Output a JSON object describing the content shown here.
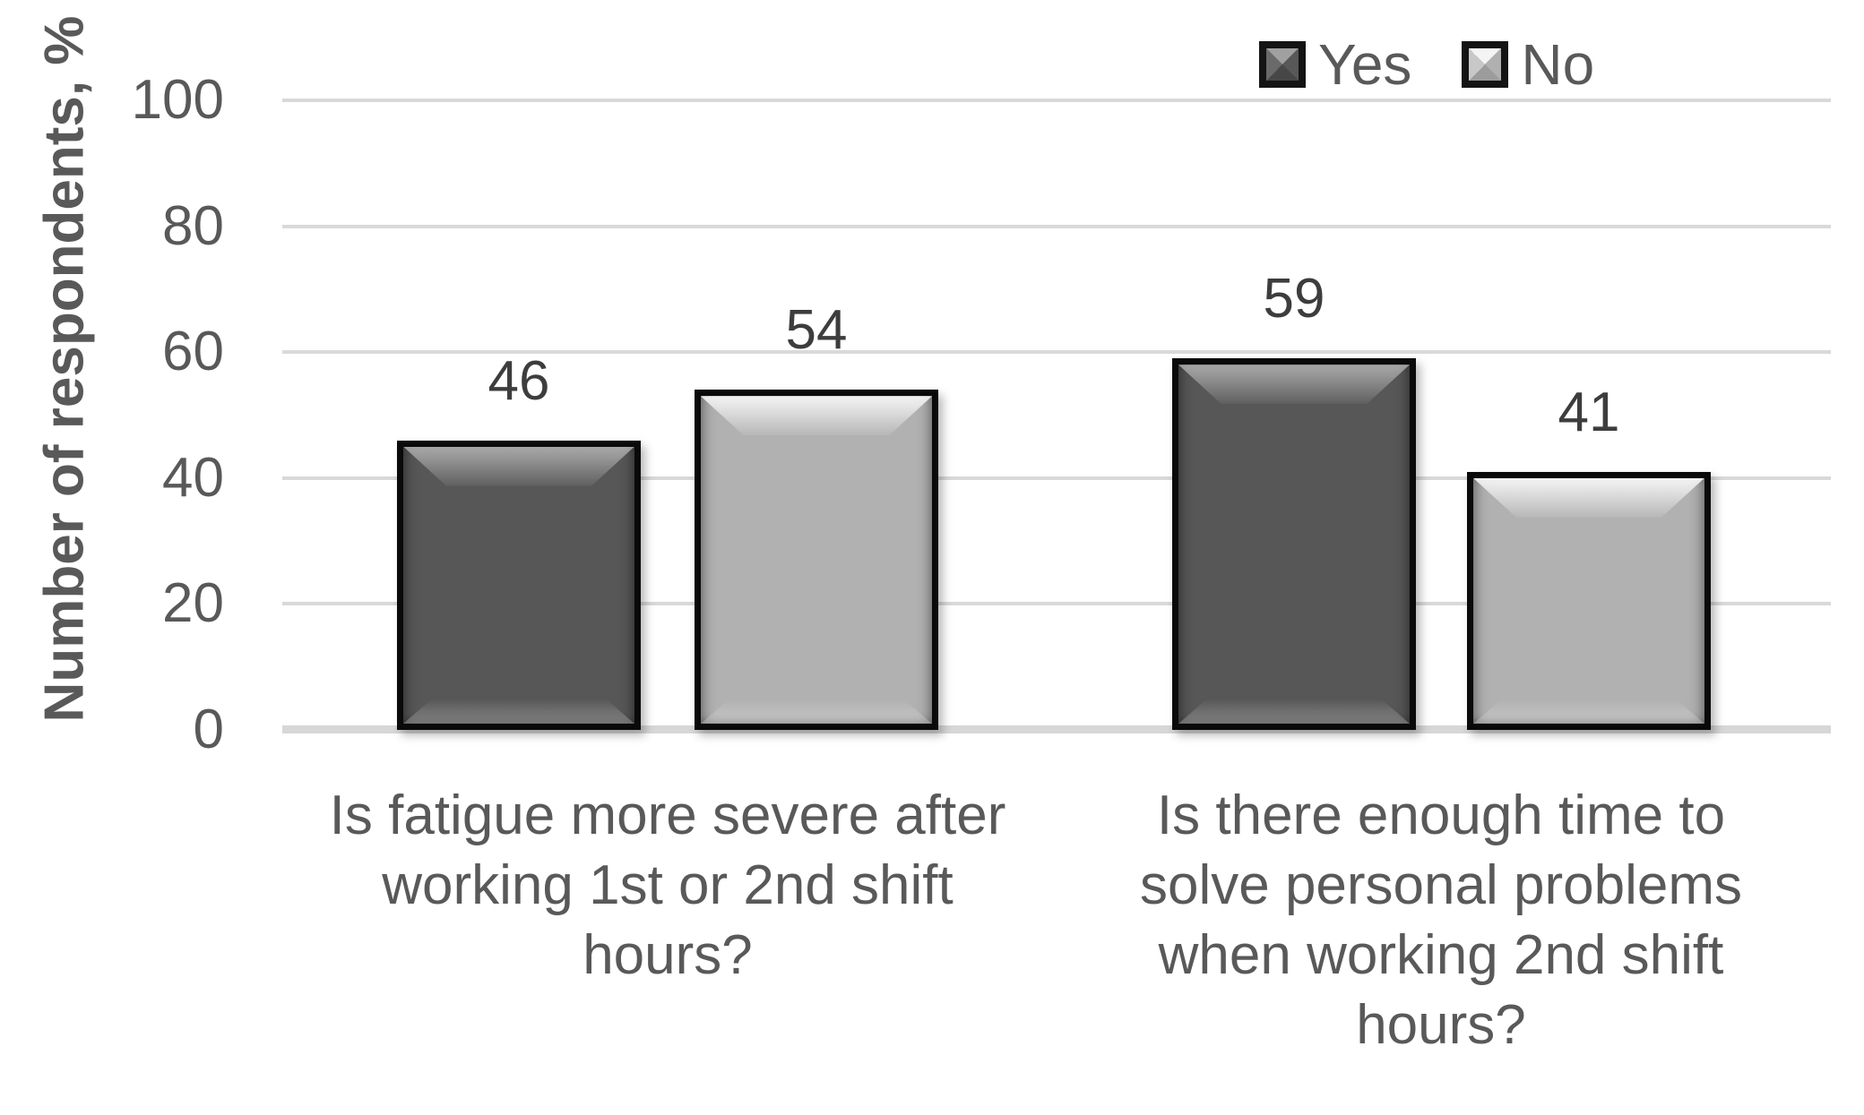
{
  "colors": {
    "text": "#595959",
    "value_label_text": "#3d3d3d",
    "gridline": "#d9d9d9",
    "axis_line": "#d7d7d7",
    "bar_border": "#0a0a0a",
    "yes_fill": "#575757",
    "no_fill": "#b1b1b1",
    "background": "#ffffff"
  },
  "legend": {
    "items": [
      {
        "label": "Yes",
        "swatch": "dark-beveled-square"
      },
      {
        "label": "No",
        "swatch": "light-beveled-square"
      }
    ],
    "position": "top-right"
  },
  "chart_data": {
    "type": "bar",
    "title": "",
    "xlabel": "",
    "ylabel": "Number of respondents, %",
    "ylim": [
      0,
      100
    ],
    "yticks": [
      0,
      20,
      40,
      60,
      80,
      100
    ],
    "grid": true,
    "legend_position": "top-right",
    "categories": [
      "Is fatigue more severe after working 1st or 2nd shift hours?",
      "Is there enough time to solve personal problems when working 2nd shift hours?"
    ],
    "category_lines": [
      [
        "Is fatigue more severe after",
        "working 1st or 2nd shift",
        "hours?"
      ],
      [
        "Is there enough time to",
        "solve personal problems",
        "when working 2nd shift",
        "hours?"
      ]
    ],
    "series": [
      {
        "name": "Yes",
        "values": [
          46,
          59
        ]
      },
      {
        "name": "No",
        "values": [
          54,
          41
        ]
      }
    ]
  }
}
